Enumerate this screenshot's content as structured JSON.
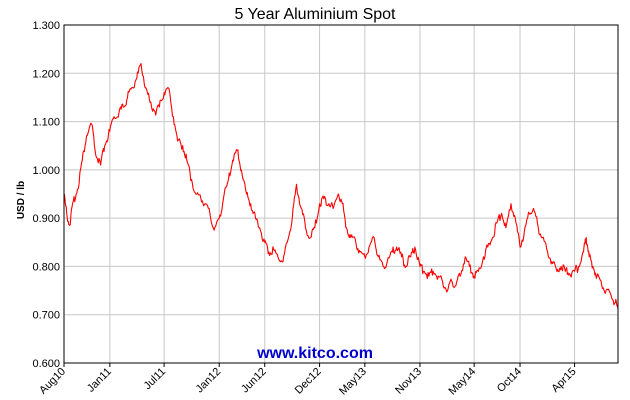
{
  "chart_data": {
    "type": "line",
    "title": "5 Year Aluminium Spot",
    "ylabel": "USD / lb",
    "xlabel": "",
    "ylim": [
      0.6,
      1.3
    ],
    "y_ticks": [
      "0.600",
      "0.700",
      "0.800",
      "0.900",
      "1.000",
      "1.100",
      "1.200",
      "1.300"
    ],
    "x_range": [
      "2010-08-01",
      "2015-08-24"
    ],
    "x_ticks": [
      {
        "label": "Aug10",
        "date": "2010-08-01"
      },
      {
        "label": "Jan11",
        "date": "2011-01-01"
      },
      {
        "label": "Jul11",
        "date": "2011-07-01"
      },
      {
        "label": "Jan12",
        "date": "2012-01-01"
      },
      {
        "label": "Jun12",
        "date": "2012-06-01"
      },
      {
        "label": "Dec12",
        "date": "2012-12-01"
      },
      {
        "label": "May13",
        "date": "2013-05-01"
      },
      {
        "label": "Nov13",
        "date": "2013-11-01"
      },
      {
        "label": "May14",
        "date": "2014-05-01"
      },
      {
        "label": "Oct14",
        "date": "2014-10-01"
      },
      {
        "label": "Apr15",
        "date": "2015-04-01"
      }
    ],
    "grid": true,
    "watermark": "www.kitco.com",
    "series": [
      {
        "color": "#ff0000",
        "points": [
          [
            "2010-08-01",
            0.95
          ],
          [
            "2010-08-10",
            0.91
          ],
          [
            "2010-08-20",
            0.885
          ],
          [
            "2010-09-01",
            0.935
          ],
          [
            "2010-09-15",
            0.96
          ],
          [
            "2010-10-01",
            1.02
          ],
          [
            "2010-10-15",
            1.07
          ],
          [
            "2010-11-01",
            1.095
          ],
          [
            "2010-11-15",
            1.03
          ],
          [
            "2010-12-01",
            1.01
          ],
          [
            "2010-12-15",
            1.05
          ],
          [
            "2011-01-01",
            1.08
          ],
          [
            "2011-01-15",
            1.11
          ],
          [
            "2011-02-01",
            1.12
          ],
          [
            "2011-02-15",
            1.13
          ],
          [
            "2011-03-01",
            1.15
          ],
          [
            "2011-03-15",
            1.17
          ],
          [
            "2011-04-01",
            1.19
          ],
          [
            "2011-04-15",
            1.22
          ],
          [
            "2011-05-01",
            1.17
          ],
          [
            "2011-05-15",
            1.14
          ],
          [
            "2011-06-01",
            1.12
          ],
          [
            "2011-06-15",
            1.13
          ],
          [
            "2011-07-01",
            1.16
          ],
          [
            "2011-07-15",
            1.17
          ],
          [
            "2011-08-01",
            1.11
          ],
          [
            "2011-08-15",
            1.06
          ],
          [
            "2011-09-01",
            1.05
          ],
          [
            "2011-09-15",
            1.02
          ],
          [
            "2011-10-01",
            0.98
          ],
          [
            "2011-10-15",
            0.95
          ],
          [
            "2011-11-01",
            0.94
          ],
          [
            "2011-11-15",
            0.93
          ],
          [
            "2011-12-01",
            0.91
          ],
          [
            "2011-12-15",
            0.875
          ],
          [
            "2012-01-01",
            0.9
          ],
          [
            "2012-01-15",
            0.94
          ],
          [
            "2012-02-01",
            0.98
          ],
          [
            "2012-02-15",
            1.02
          ],
          [
            "2012-03-01",
            1.04
          ],
          [
            "2012-03-15",
            1.0
          ],
          [
            "2012-04-01",
            0.95
          ],
          [
            "2012-04-15",
            0.93
          ],
          [
            "2012-05-01",
            0.9
          ],
          [
            "2012-05-15",
            0.88
          ],
          [
            "2012-06-01",
            0.85
          ],
          [
            "2012-06-15",
            0.83
          ],
          [
            "2012-07-01",
            0.835
          ],
          [
            "2012-07-15",
            0.82
          ],
          [
            "2012-08-01",
            0.81
          ],
          [
            "2012-08-15",
            0.85
          ],
          [
            "2012-09-01",
            0.9
          ],
          [
            "2012-09-15",
            0.97
          ],
          [
            "2012-10-01",
            0.92
          ],
          [
            "2012-10-15",
            0.88
          ],
          [
            "2012-11-01",
            0.86
          ],
          [
            "2012-11-15",
            0.88
          ],
          [
            "2012-12-01",
            0.93
          ],
          [
            "2012-12-15",
            0.94
          ],
          [
            "2013-01-01",
            0.93
          ],
          [
            "2013-01-15",
            0.92
          ],
          [
            "2013-02-01",
            0.95
          ],
          [
            "2013-02-15",
            0.93
          ],
          [
            "2013-03-01",
            0.88
          ],
          [
            "2013-03-15",
            0.86
          ],
          [
            "2013-04-01",
            0.85
          ],
          [
            "2013-04-15",
            0.83
          ],
          [
            "2013-05-01",
            0.82
          ],
          [
            "2013-05-15",
            0.84
          ],
          [
            "2013-06-01",
            0.86
          ],
          [
            "2013-06-15",
            0.82
          ],
          [
            "2013-07-01",
            0.8
          ],
          [
            "2013-07-15",
            0.81
          ],
          [
            "2013-08-01",
            0.83
          ],
          [
            "2013-08-15",
            0.84
          ],
          [
            "2013-09-01",
            0.82
          ],
          [
            "2013-09-15",
            0.8
          ],
          [
            "2013-10-01",
            0.82
          ],
          [
            "2013-10-15",
            0.84
          ],
          [
            "2013-11-01",
            0.8
          ],
          [
            "2013-11-15",
            0.79
          ],
          [
            "2013-12-01",
            0.78
          ],
          [
            "2013-12-15",
            0.79
          ],
          [
            "2014-01-01",
            0.78
          ],
          [
            "2014-01-15",
            0.77
          ],
          [
            "2014-02-01",
            0.75
          ],
          [
            "2014-02-15",
            0.77
          ],
          [
            "2014-03-01",
            0.76
          ],
          [
            "2014-03-15",
            0.78
          ],
          [
            "2014-04-01",
            0.82
          ],
          [
            "2014-04-15",
            0.8
          ],
          [
            "2014-05-01",
            0.78
          ],
          [
            "2014-05-15",
            0.79
          ],
          [
            "2014-06-01",
            0.82
          ],
          [
            "2014-06-15",
            0.84
          ],
          [
            "2014-07-01",
            0.86
          ],
          [
            "2014-07-15",
            0.89
          ],
          [
            "2014-08-01",
            0.91
          ],
          [
            "2014-08-15",
            0.88
          ],
          [
            "2014-09-01",
            0.93
          ],
          [
            "2014-09-15",
            0.9
          ],
          [
            "2014-10-01",
            0.84
          ],
          [
            "2014-10-15",
            0.87
          ],
          [
            "2014-11-01",
            0.91
          ],
          [
            "2014-11-15",
            0.92
          ],
          [
            "2014-12-01",
            0.88
          ],
          [
            "2014-12-15",
            0.86
          ],
          [
            "2015-01-01",
            0.83
          ],
          [
            "2015-01-15",
            0.81
          ],
          [
            "2015-02-01",
            0.79
          ],
          [
            "2015-02-15",
            0.8
          ],
          [
            "2015-03-01",
            0.79
          ],
          [
            "2015-03-15",
            0.785
          ],
          [
            "2015-04-01",
            0.79
          ],
          [
            "2015-04-15",
            0.8
          ],
          [
            "2015-05-01",
            0.83
          ],
          [
            "2015-05-10",
            0.86
          ],
          [
            "2015-05-20",
            0.82
          ],
          [
            "2015-06-01",
            0.8
          ],
          [
            "2015-06-15",
            0.78
          ],
          [
            "2015-07-01",
            0.76
          ],
          [
            "2015-07-15",
            0.75
          ],
          [
            "2015-08-01",
            0.74
          ],
          [
            "2015-08-15",
            0.725
          ],
          [
            "2015-08-24",
            0.71
          ]
        ]
      }
    ]
  }
}
